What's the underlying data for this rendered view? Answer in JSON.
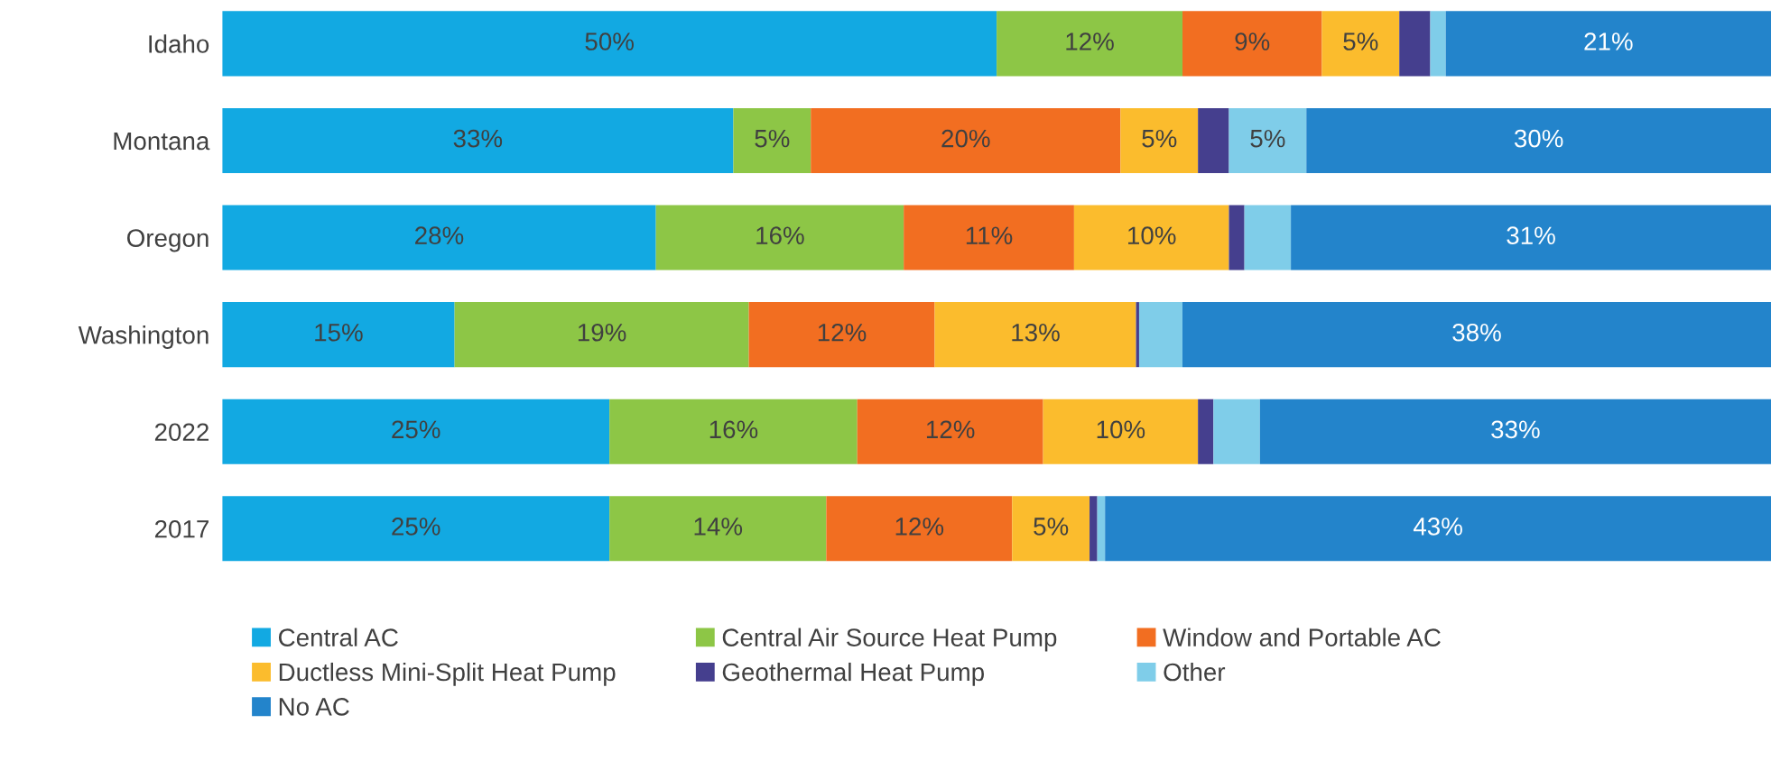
{
  "chart_data": {
    "type": "bar",
    "orientation": "horizontal",
    "stacked": true,
    "categories": [
      "Idaho",
      "Montana",
      "Oregon",
      "Washington",
      "2022",
      "2017"
    ],
    "xlim": [
      0,
      100
    ],
    "tick_labels": "y",
    "grid": false,
    "legend": "bottom",
    "series": [
      {
        "name": "Central AC",
        "color": "#12a9e2",
        "values": [
          50,
          33,
          28,
          15,
          25,
          25
        ],
        "value_labels": [
          "50%",
          "33%",
          "28%",
          "15%",
          "25%",
          "25%"
        ]
      },
      {
        "name": "Central Air Source Heat Pump",
        "color": "#8dc646",
        "values": [
          12,
          5,
          16,
          19,
          16,
          14
        ],
        "value_labels": [
          "12%",
          "5%",
          "16%",
          "19%",
          "16%",
          "14%"
        ]
      },
      {
        "name": "Window and Portable AC",
        "color": "#f26e21",
        "values": [
          9,
          20,
          11,
          12,
          12,
          12
        ],
        "value_labels": [
          "9%",
          "20%",
          "11%",
          "12%",
          "12%",
          "12%"
        ]
      },
      {
        "name": "Ductless Mini-Split Heat Pump",
        "color": "#fbbc2d",
        "values": [
          5,
          5,
          10,
          13,
          10,
          5
        ],
        "value_labels": [
          "5%",
          "5%",
          "10%",
          "13%",
          "10%",
          "5%"
        ]
      },
      {
        "name": "Geothermal Heat Pump",
        "color": "#453f8e",
        "values": [
          2,
          2,
          1,
          0.2,
          1,
          0.5
        ],
        "value_labels": [
          null,
          null,
          null,
          null,
          null,
          null
        ]
      },
      {
        "name": "Other",
        "color": "#7fcde9",
        "values": [
          1,
          5,
          3,
          2.8,
          3,
          0.5
        ],
        "value_labels": [
          null,
          "5%",
          null,
          null,
          null,
          null
        ]
      },
      {
        "name": "No AC",
        "color": "#2384cb",
        "values": [
          21,
          30,
          31,
          38,
          33,
          43
        ],
        "value_labels": [
          "21%",
          "30%",
          "31%",
          "38%",
          "33%",
          "43%"
        ]
      }
    ]
  }
}
